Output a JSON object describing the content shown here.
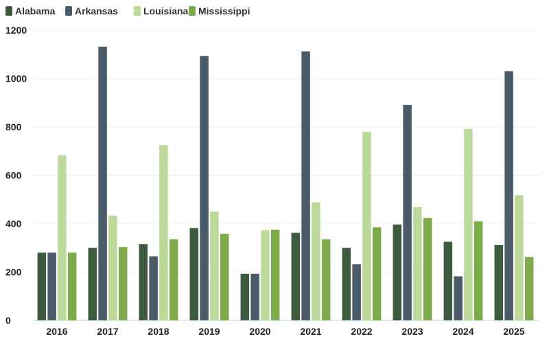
{
  "chart_data": {
    "type": "bar",
    "title": "",
    "xlabel": "",
    "ylabel": "",
    "categories": [
      "2016",
      "2017",
      "2018",
      "2019",
      "2020",
      "2021",
      "2022",
      "2023",
      "2024",
      "2025"
    ],
    "series": [
      {
        "name": "Alabama",
        "color": "#3f5b3f",
        "values": [
          280,
          300,
          315,
          382,
          193,
          362,
          300,
          396,
          325,
          312
        ]
      },
      {
        "name": "Arkansas",
        "color": "#4a5a66",
        "values": [
          280,
          1132,
          265,
          1093,
          193,
          1112,
          232,
          891,
          182,
          1030
        ]
      },
      {
        "name": "Louisiana",
        "color": "#bcd89a",
        "values": [
          683,
          433,
          725,
          450,
          373,
          488,
          780,
          468,
          792,
          518
        ]
      },
      {
        "name": "Mississippi",
        "color": "#7eab4a",
        "values": [
          280,
          303,
          335,
          358,
          375,
          335,
          385,
          423,
          410,
          262
        ]
      }
    ],
    "yticks": [
      "0",
      "200",
      "400",
      "600",
      "800",
      "1000",
      "1200"
    ],
    "ylim": [
      0,
      1200
    ],
    "grid": true,
    "legend_position": "top-left"
  }
}
